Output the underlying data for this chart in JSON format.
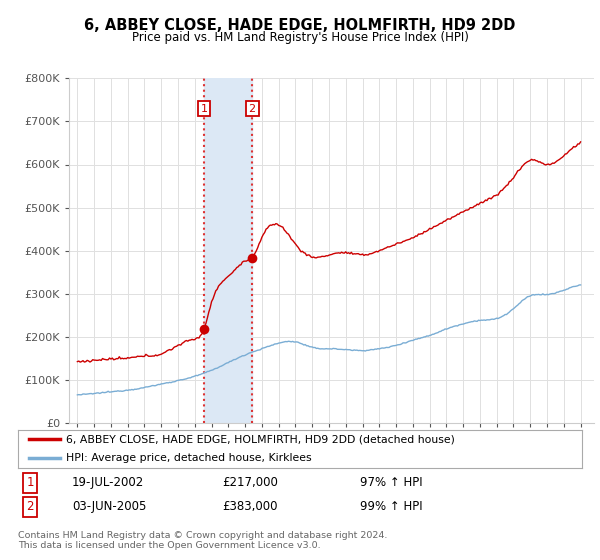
{
  "title": "6, ABBEY CLOSE, HADE EDGE, HOLMFIRTH, HD9 2DD",
  "subtitle": "Price paid vs. HM Land Registry's House Price Index (HPI)",
  "legend_line1": "6, ABBEY CLOSE, HADE EDGE, HOLMFIRTH, HD9 2DD (detached house)",
  "legend_line2": "HPI: Average price, detached house, Kirklees",
  "sale1_date": "19-JUL-2002",
  "sale1_price": "£217,000",
  "sale1_hpi": "97% ↑ HPI",
  "sale1_year": 2002.54,
  "sale1_value": 217000,
  "sale2_date": "03-JUN-2005",
  "sale2_price": "£383,000",
  "sale2_hpi": "99% ↑ HPI",
  "sale2_year": 2005.42,
  "sale2_value": 383000,
  "ylim": [
    0,
    800000
  ],
  "yticks": [
    0,
    100000,
    200000,
    300000,
    400000,
    500000,
    600000,
    700000,
    800000
  ],
  "ylabels": [
    "£0",
    "£100K",
    "£200K",
    "£300K",
    "£400K",
    "£500K",
    "£600K",
    "£700K",
    "£800K"
  ],
  "background_color": "#ffffff",
  "plot_bg_color": "#ffffff",
  "grid_color": "#e0e0e0",
  "red_color": "#cc0000",
  "blue_color": "#7aadd4",
  "shade_color": "#dce8f5",
  "footer": "Contains HM Land Registry data © Crown copyright and database right 2024.\nThis data is licensed under the Open Government Licence v3.0.",
  "hpi_pts_x": [
    1995,
    1996,
    1997,
    1998,
    1999,
    2000,
    2001,
    2002,
    2003,
    2004,
    2005,
    2006,
    2007,
    2008,
    2009,
    2010,
    2011,
    2012,
    2013,
    2014,
    2015,
    2016,
    2017,
    2018,
    2019,
    2020,
    2021,
    2022,
    2023,
    2024,
    2025
  ],
  "hpi_pts_y": [
    65000,
    68000,
    72000,
    76000,
    82000,
    90000,
    98000,
    108000,
    122000,
    140000,
    158000,
    172000,
    185000,
    188000,
    175000,
    172000,
    170000,
    168000,
    172000,
    180000,
    192000,
    203000,
    218000,
    230000,
    238000,
    242000,
    265000,
    295000,
    298000,
    308000,
    320000
  ],
  "prop_pts_x": [
    1995,
    1996,
    1997,
    1998,
    1999,
    2000,
    2001,
    2002.0,
    2002.54,
    2003.0,
    2004.0,
    2005.0,
    2005.42,
    2006.0,
    2007.0,
    2008.0,
    2009.0,
    2010.0,
    2011.0,
    2012.0,
    2013.0,
    2014.0,
    2015.0,
    2016.0,
    2017.0,
    2018.0,
    2019.0,
    2020.0,
    2021.0,
    2022.0,
    2023.0,
    2024.0,
    2025.0
  ],
  "prop_pts_y": [
    142000,
    145000,
    148000,
    150000,
    155000,
    160000,
    180000,
    195000,
    217000,
    280000,
    340000,
    375000,
    383000,
    430000,
    460000,
    415000,
    385000,
    390000,
    395000,
    390000,
    400000,
    415000,
    430000,
    450000,
    470000,
    490000,
    510000,
    530000,
    570000,
    610000,
    600000,
    620000,
    650000
  ]
}
